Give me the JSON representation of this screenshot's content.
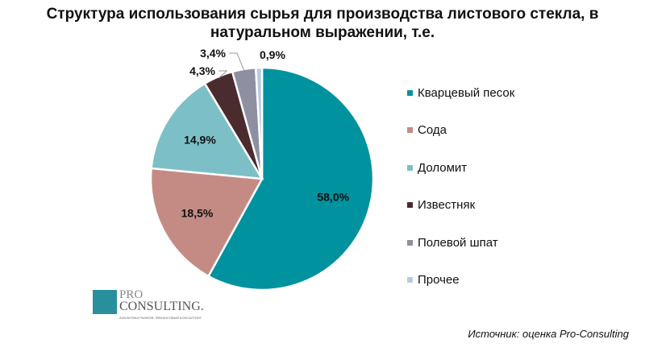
{
  "chart_data": {
    "type": "pie",
    "title": "Структура использования сырья для производства листового стекла, в натуральном выражении, т.е.",
    "categories": [
      "Кварцевый песок",
      "Сода",
      "Доломит",
      "Известняк",
      "Полевой шпат",
      "Прочее"
    ],
    "values": [
      58.0,
      18.5,
      14.9,
      4.3,
      3.4,
      0.9
    ],
    "labels": [
      "58,0%",
      "18,5%",
      "14,9%",
      "4,3%",
      "3,4%",
      "0,9%"
    ],
    "colors": [
      "#00929f",
      "#c48b84",
      "#7dbfc7",
      "#4a2c2e",
      "#8e8fa0",
      "#b7cbe0"
    ],
    "legend_position": "right",
    "start": "top, clockwise"
  },
  "source": "Источник: оценка Pro-Consulting",
  "logo": {
    "line1": "PRO",
    "line2": "CONSULTING.",
    "sub": "АНАЛИТИКА РЫНКОВ, ФИНАНСОВЫЙ КОНСАЛТИНГ"
  }
}
